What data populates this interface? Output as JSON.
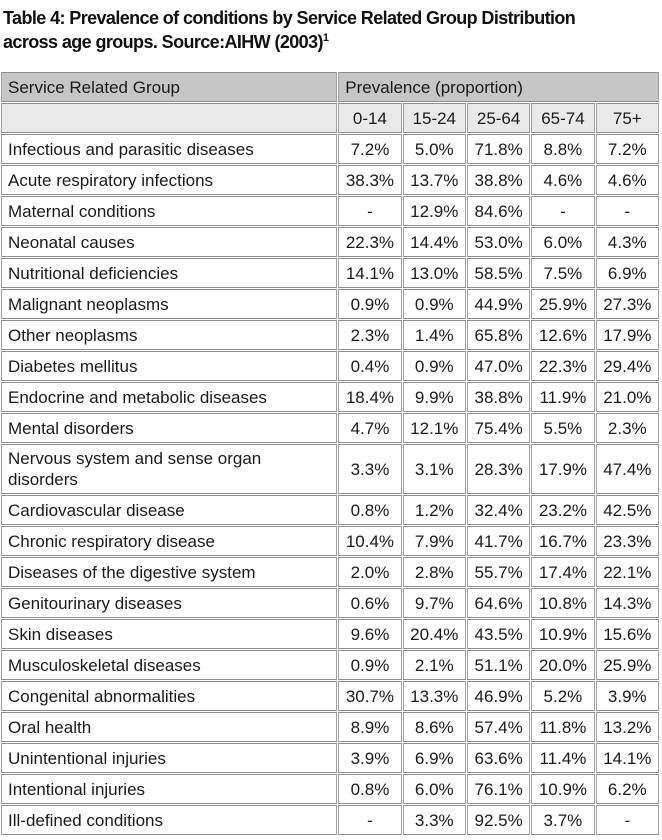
{
  "page": {
    "title_line1": "Table 4: Prevalence of conditions by Service Related Group Distribution",
    "title_line2": "across age groups. Source:AIHW (2003)",
    "title_footnote": "1"
  },
  "table": {
    "col1_header": "Service Related Group",
    "group_header": "Prevalence (proportion)",
    "age_columns": [
      "0-14",
      "15-24",
      "25-64",
      "65-74",
      "75+"
    ],
    "rows": [
      {
        "label": "Infectious and parasitic diseases",
        "values": [
          "7.2%",
          "5.0%",
          "71.8%",
          "8.8%",
          "7.2%"
        ]
      },
      {
        "label": "Acute respiratory infections",
        "values": [
          "38.3%",
          "13.7%",
          "38.8%",
          "4.6%",
          "4.6%"
        ]
      },
      {
        "label": "Maternal conditions",
        "values": [
          "-",
          "12.9%",
          "84.6%",
          "-",
          "-"
        ]
      },
      {
        "label": "Neonatal causes",
        "values": [
          "22.3%",
          "14.4%",
          "53.0%",
          "6.0%",
          "4.3%"
        ]
      },
      {
        "label": "Nutritional deficiencies",
        "values": [
          "14.1%",
          "13.0%",
          "58.5%",
          "7.5%",
          "6.9%"
        ]
      },
      {
        "label": "Malignant neoplasms",
        "values": [
          "0.9%",
          "0.9%",
          "44.9%",
          "25.9%",
          "27.3%"
        ]
      },
      {
        "label": "Other neoplasms",
        "values": [
          "2.3%",
          "1.4%",
          "65.8%",
          "12.6%",
          "17.9%"
        ]
      },
      {
        "label": "Diabetes mellitus",
        "values": [
          "0.4%",
          "0.9%",
          "47.0%",
          "22.3%",
          "29.4%"
        ]
      },
      {
        "label": "Endocrine and metabolic diseases",
        "values": [
          "18.4%",
          "9.9%",
          "38.8%",
          "11.9%",
          "21.0%"
        ]
      },
      {
        "label": "Mental disorders",
        "values": [
          "4.7%",
          "12.1%",
          "75.4%",
          "5.5%",
          "2.3%"
        ]
      },
      {
        "label": "Nervous system and sense organ disorders",
        "values": [
          "3.3%",
          "3.1%",
          "28.3%",
          "17.9%",
          "47.4%"
        ]
      },
      {
        "label": "Cardiovascular disease",
        "values": [
          "0.8%",
          "1.2%",
          "32.4%",
          "23.2%",
          "42.5%"
        ]
      },
      {
        "label": "Chronic respiratory disease",
        "values": [
          "10.4%",
          "7.9%",
          "41.7%",
          "16.7%",
          "23.3%"
        ]
      },
      {
        "label": "Diseases of the digestive system",
        "values": [
          "2.0%",
          "2.8%",
          "55.7%",
          "17.4%",
          "22.1%"
        ]
      },
      {
        "label": "Genitourinary diseases",
        "values": [
          "0.6%",
          "9.7%",
          "64.6%",
          "10.8%",
          "14.3%"
        ]
      },
      {
        "label": "Skin diseases",
        "values": [
          "9.6%",
          "20.4%",
          "43.5%",
          "10.9%",
          "15.6%"
        ]
      },
      {
        "label": "Musculoskeletal diseases",
        "values": [
          "0.9%",
          "2.1%",
          "51.1%",
          "20.0%",
          "25.9%"
        ]
      },
      {
        "label": "Congenital abnormalities",
        "values": [
          "30.7%",
          "13.3%",
          "46.9%",
          "5.2%",
          "3.9%"
        ]
      },
      {
        "label": "Oral health",
        "values": [
          "8.9%",
          "8.6%",
          "57.4%",
          "11.8%",
          "13.2%"
        ]
      },
      {
        "label": "Unintentional injuries",
        "values": [
          "3.9%",
          "6.9%",
          "63.6%",
          "11.4%",
          "14.1%"
        ]
      },
      {
        "label": "Intentional injuries",
        "values": [
          "0.8%",
          "6.0%",
          "76.1%",
          "10.9%",
          "6.2%"
        ]
      },
      {
        "label": "Ill-defined conditions",
        "values": [
          "-",
          "3.3%",
          "92.5%",
          "3.7%",
          "-"
        ]
      }
    ]
  },
  "colors": {
    "header_bg": "#c6c6c6",
    "subheader_bg": "#e9e9e9",
    "border_horizontal": "#8f8f8f",
    "border_vertical": "#a3a3a3",
    "text": "#1a1a1a"
  }
}
